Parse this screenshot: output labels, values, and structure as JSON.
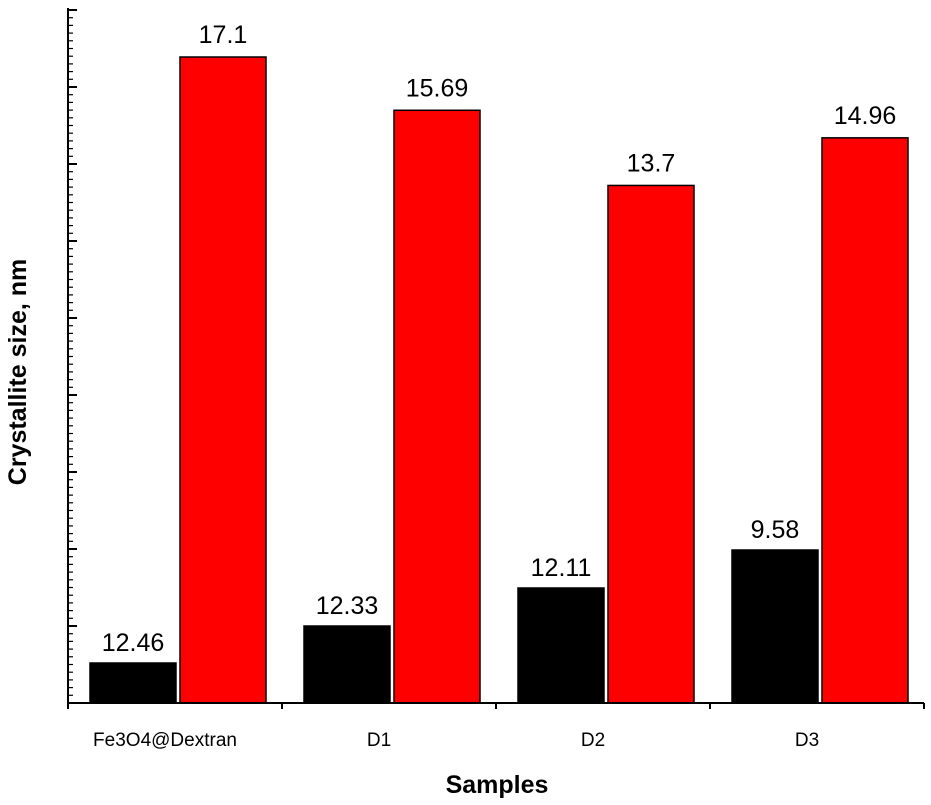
{
  "chart_data": {
    "type": "bar",
    "title": "",
    "xlabel": "Samples",
    "ylabel": "Crystallite size, nm",
    "categories": [
      "Fe3O4@Dextran",
      "D1",
      "D2",
      "D3"
    ],
    "series": [
      {
        "color": "#000000",
        "values": [
          12.46,
          12.33,
          12.11,
          9.58
        ]
      },
      {
        "color": "#ff0000",
        "values": [
          17.1,
          15.69,
          13.7,
          14.96
        ]
      }
    ],
    "y_tick_labels": "none",
    "grid": false,
    "legend": "none"
  }
}
